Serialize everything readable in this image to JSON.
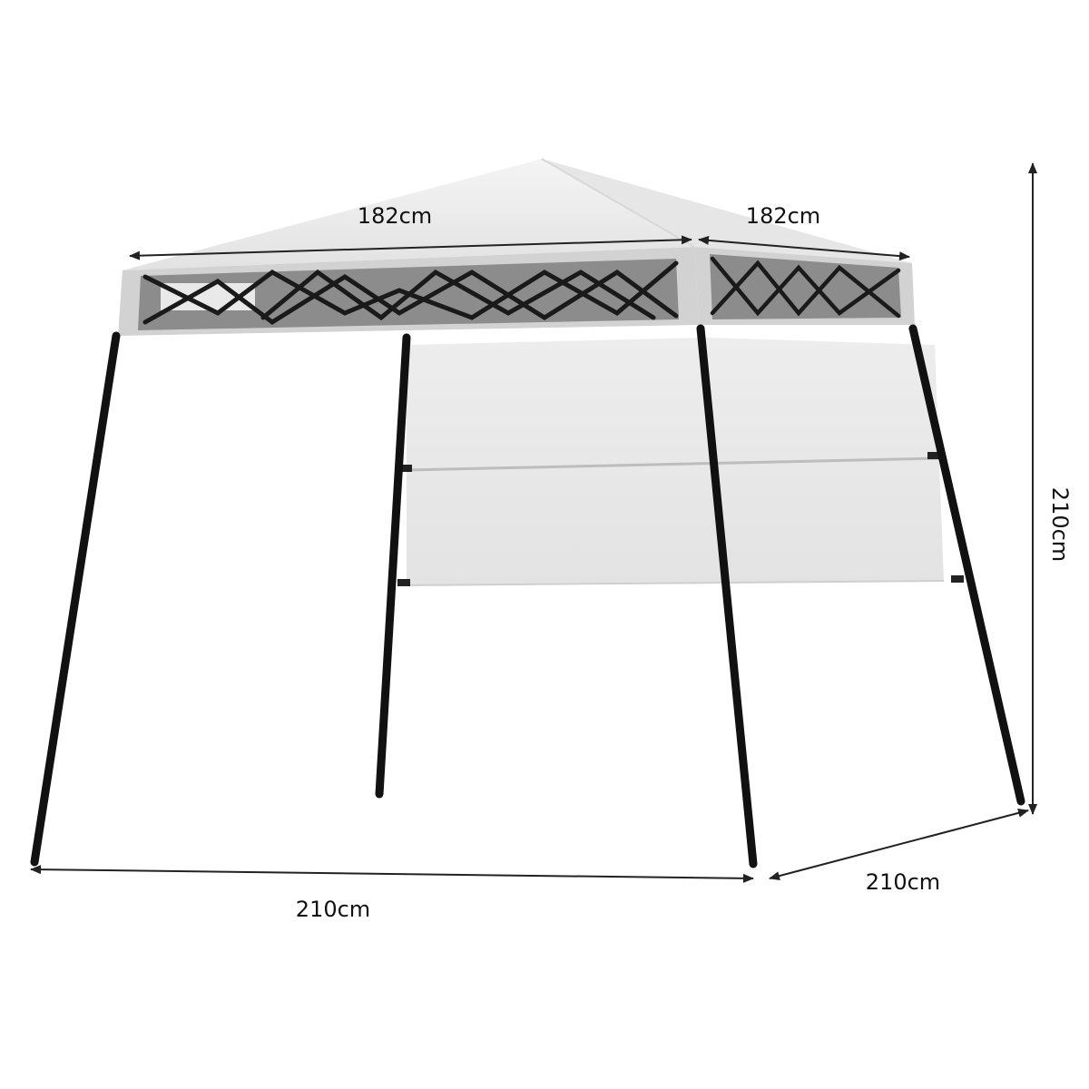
{
  "dimensions": {
    "top_front_width": "182cm",
    "top_side_depth": "182cm",
    "height": "210cm",
    "base_front_width": "210cm",
    "base_side_depth": "210cm"
  },
  "colors": {
    "canopy_top": "#ebebeb",
    "canopy_valance": "#cfcfcf",
    "mesh_panel": "#8c8c8c",
    "frame": "#111111",
    "sunwall": "#e8e8e8",
    "dimension_line": "#222222"
  }
}
